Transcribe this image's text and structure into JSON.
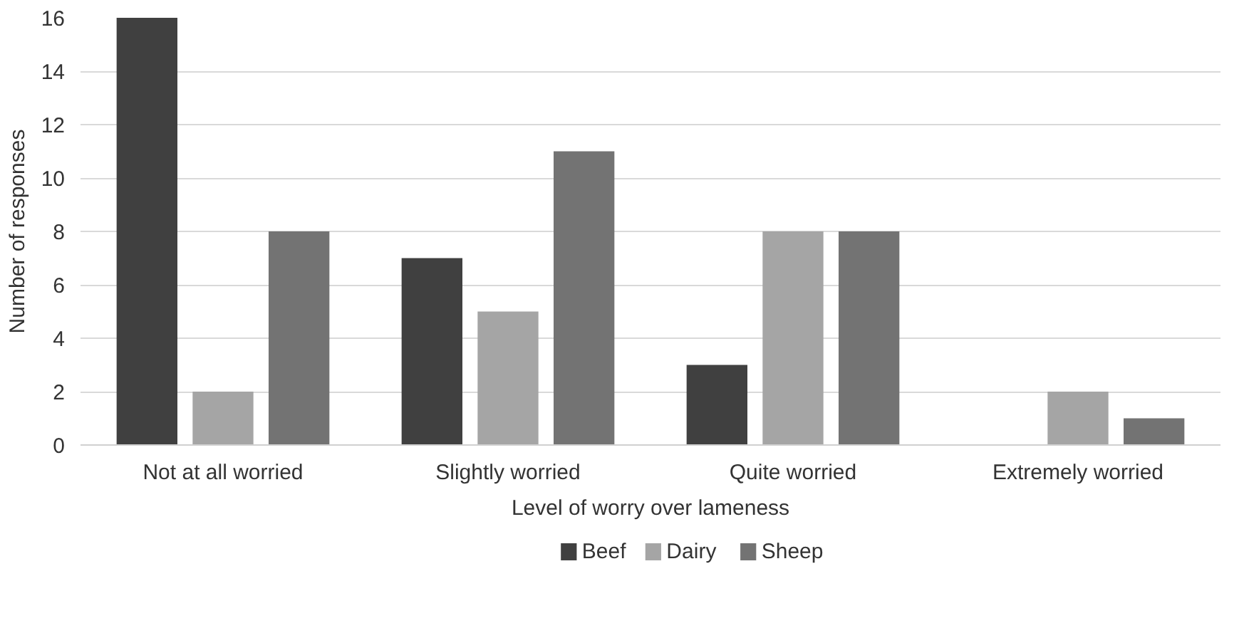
{
  "chart_data": {
    "type": "bar",
    "xlabel": "Level of worry over lameness",
    "ylabel": "Number of responses",
    "categories": [
      "Not at all worried",
      "Slightly worried",
      "Quite worried",
      "Extremely worried"
    ],
    "series": [
      {
        "name": "Beef",
        "color": "#404040",
        "values": [
          16,
          7,
          3,
          0
        ]
      },
      {
        "name": "Dairy",
        "color": "#a5a5a5",
        "values": [
          2,
          5,
          8,
          2
        ]
      },
      {
        "name": "Sheep",
        "color": "#737373",
        "values": [
          8,
          11,
          8,
          1
        ]
      }
    ],
    "ylim": [
      0,
      16
    ],
    "yticks": [
      0,
      2,
      4,
      6,
      8,
      10,
      12,
      14,
      16
    ],
    "grid": "y",
    "legend": "bottom"
  }
}
